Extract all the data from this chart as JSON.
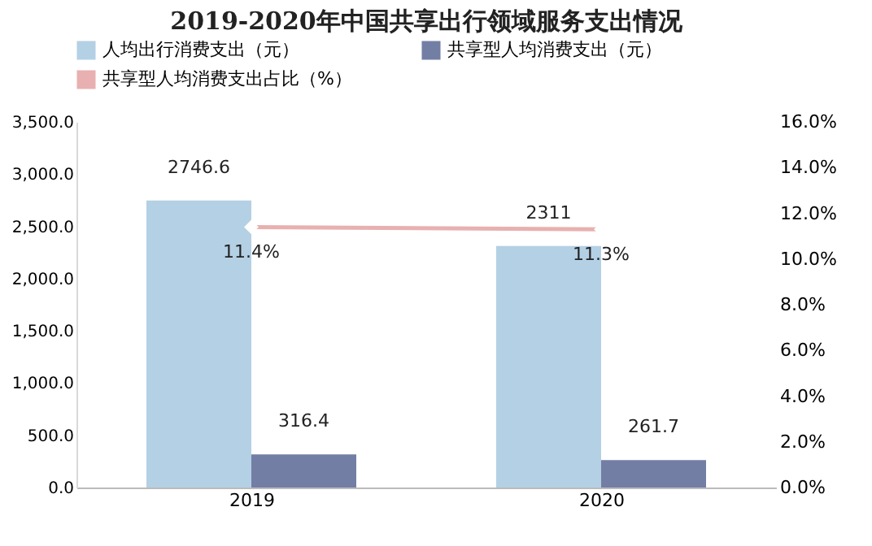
{
  "chart_data": {
    "type": "bar",
    "title": "2019-2020年中国共享出行领域服务支出情况",
    "categories": [
      "2019",
      "2020"
    ],
    "series": [
      {
        "name": "人均出行消费支出（元）",
        "color": "#b4d0e4",
        "values": [
          2746.6,
          2311
        ],
        "value_labels": [
          "2746.6",
          "2311"
        ]
      },
      {
        "name": "共享型人均消费支出（元）",
        "color": "#737ea4",
        "values": [
          316.4,
          261.7
        ],
        "value_labels": [
          "316.4",
          "261.7"
        ]
      },
      {
        "name": "共享型人均消费支出占比（%）",
        "type": "line",
        "axis": "y2",
        "color": "#e8b0b0",
        "marker": "diamond",
        "values": [
          11.4,
          11.3
        ],
        "value_labels": [
          "11.4%",
          "11.3%"
        ]
      }
    ],
    "ylim": [
      0,
      3500
    ],
    "yticks": [
      {
        "value": 0,
        "label": "0.0"
      },
      {
        "value": 500,
        "label": "500.0"
      },
      {
        "value": 1000,
        "label": "1,000.0"
      },
      {
        "value": 1500,
        "label": "1,500.0"
      },
      {
        "value": 2000,
        "label": "2,000.0"
      },
      {
        "value": 2500,
        "label": "2,500.0"
      },
      {
        "value": 3000,
        "label": "3,000.0"
      },
      {
        "value": 3500,
        "label": "3,500.0"
      }
    ],
    "y2lim": [
      0,
      16
    ],
    "y2ticks": [
      {
        "value": 0,
        "label": "0.0%"
      },
      {
        "value": 2,
        "label": "2.0%"
      },
      {
        "value": 4,
        "label": "4.0%"
      },
      {
        "value": 6,
        "label": "6.0%"
      },
      {
        "value": 8,
        "label": "8.0%"
      },
      {
        "value": 10,
        "label": "10.0%"
      },
      {
        "value": 12,
        "label": "12.0%"
      },
      {
        "value": 14,
        "label": "14.0%"
      },
      {
        "value": 16,
        "label": "16.0%"
      }
    ],
    "legend": "top"
  }
}
